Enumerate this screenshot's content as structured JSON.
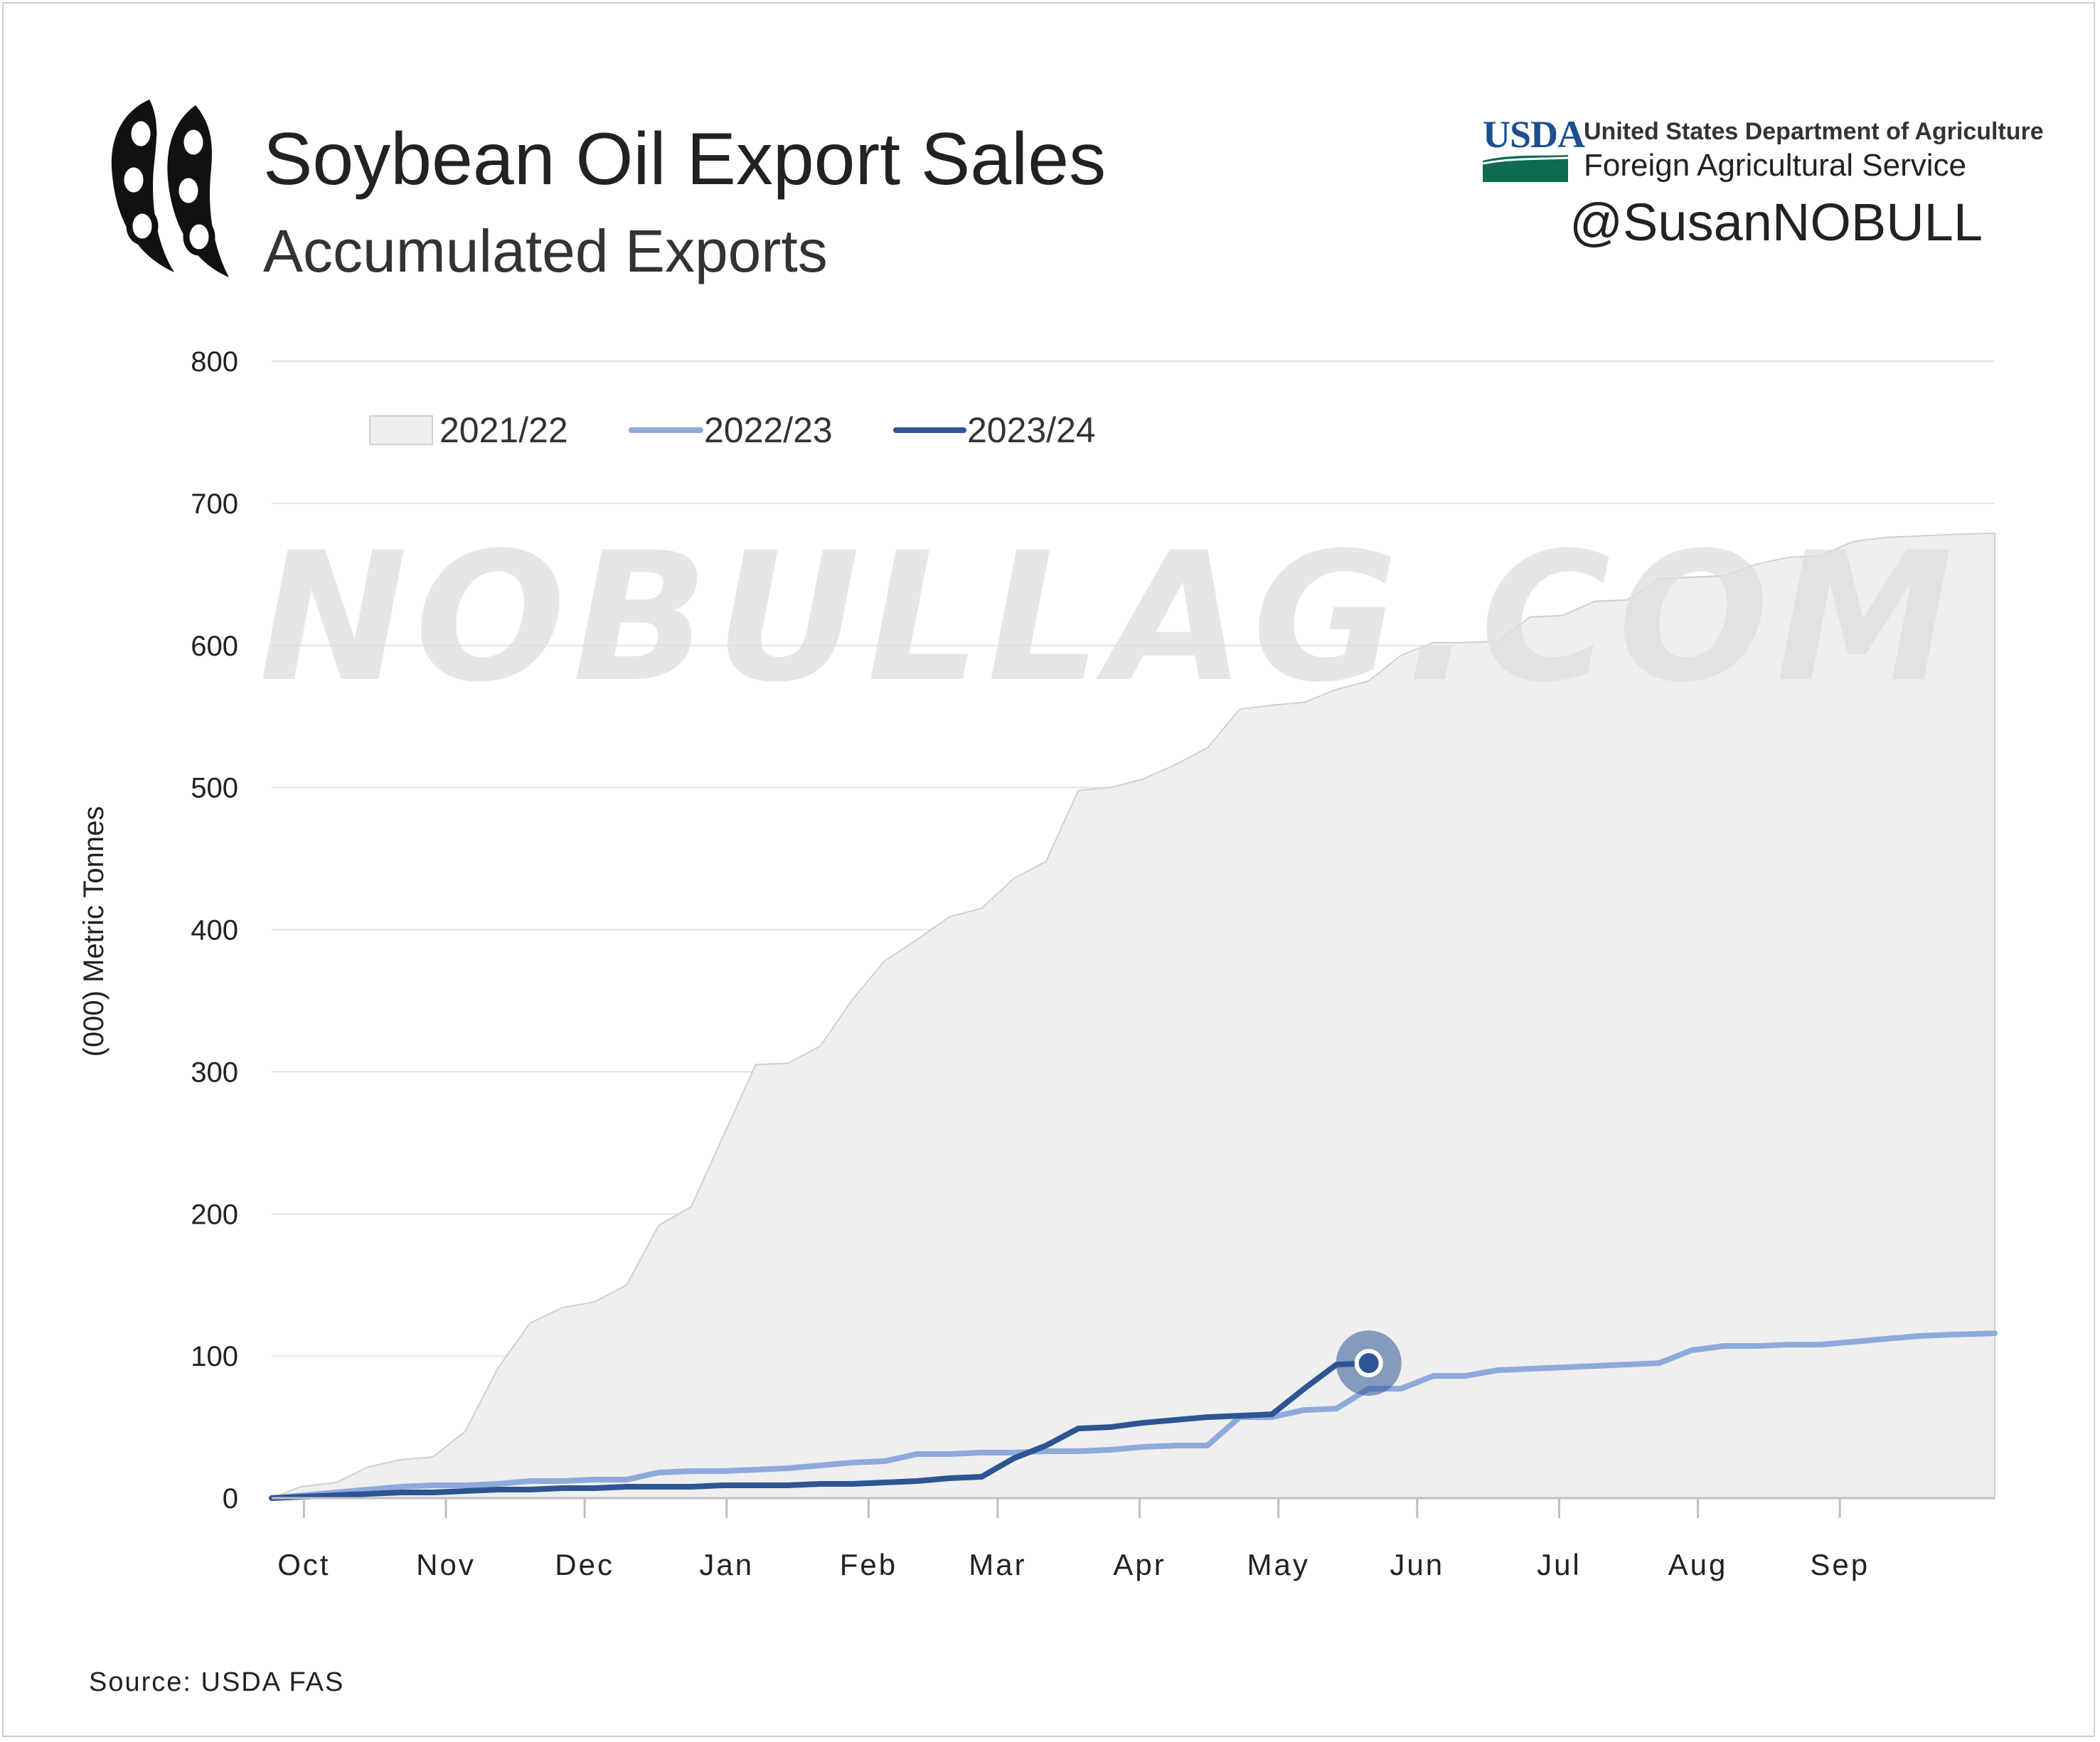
{
  "header": {
    "title": "Soybean Oil Export Sales",
    "subtitle": "Accumulated Exports",
    "logo_icon": "soybean-pod-icon"
  },
  "agency": {
    "abbr": "USDA",
    "department": "United States Department of Agriculture",
    "service": "Foreign Agricultural Service",
    "colors": {
      "blue": "#1b4f8f",
      "green": "#0f6b4f"
    }
  },
  "handle": "@SusanNOBULL",
  "watermark": "NOBULLAG.COM",
  "source": "Source: USDA FAS",
  "chart_data": {
    "type": "line",
    "title": "Soybean Oil Export Sales",
    "subtitle": "Accumulated Exports",
    "ylabel": "(000) Metric Tonnes",
    "xlabel": "",
    "ylim": [
      0,
      800
    ],
    "yticks": [
      0,
      100,
      200,
      300,
      400,
      500,
      600,
      700,
      800
    ],
    "months": [
      "Oct",
      "Nov",
      "Dec",
      "Jan",
      "Feb",
      "Mar",
      "Apr",
      "May",
      "Jun",
      "Jul",
      "Aug",
      "Sep"
    ],
    "x_unit": "weeks since start of marketing year (Oct 1)",
    "grid": true,
    "legend_position": "top-left",
    "series": [
      {
        "name": "2021/22",
        "render": "area",
        "color": "#efefef",
        "x": [
          0,
          0.9,
          2,
          3,
          4,
          5,
          6,
          7,
          8,
          9,
          10,
          11,
          12,
          13,
          14,
          15,
          16,
          17,
          18,
          19,
          20,
          21,
          22,
          23,
          24,
          25,
          26,
          27,
          28,
          29,
          30,
          31,
          32,
          33,
          34,
          35,
          36,
          37,
          38,
          39,
          40,
          41,
          42,
          43,
          44,
          45,
          46,
          47,
          48,
          49,
          50,
          51,
          52,
          53.4
        ],
        "y": [
          0,
          8,
          11,
          22,
          27,
          29,
          47,
          91,
          123,
          134,
          138,
          150,
          192,
          205,
          255,
          305,
          306,
          318,
          351,
          378,
          393,
          409,
          415,
          436,
          448,
          498,
          500,
          506,
          516,
          528,
          555,
          558,
          560,
          569,
          575,
          593,
          602,
          602,
          603,
          620,
          621,
          631,
          632,
          647,
          648,
          649,
          657,
          662,
          663,
          673,
          676,
          677,
          678,
          679
        ]
      },
      {
        "name": "2022/23",
        "render": "line",
        "color": "#8eaadc",
        "x": [
          0,
          1,
          2,
          3,
          4,
          5,
          6,
          7,
          8,
          9,
          10,
          11,
          12,
          13,
          14,
          15,
          16,
          17,
          18,
          19,
          20,
          21,
          22,
          23,
          24,
          25,
          26,
          27,
          28,
          29,
          30,
          31,
          32,
          33,
          34,
          35,
          36,
          37,
          38,
          39,
          40,
          41,
          42,
          43,
          44,
          45,
          46,
          47,
          48,
          49,
          50,
          51,
          52,
          53.4
        ],
        "y": [
          0,
          2,
          4,
          6,
          8,
          9,
          9,
          10,
          12,
          12,
          13,
          13,
          18,
          19,
          19,
          20,
          21,
          23,
          25,
          26,
          31,
          31,
          32,
          32,
          33,
          33,
          34,
          36,
          37,
          37,
          57,
          57,
          62,
          63,
          77,
          77,
          86,
          86,
          90,
          91,
          92,
          93,
          94,
          95,
          104,
          107,
          107,
          108,
          108,
          110,
          112,
          114,
          115,
          116
        ]
      },
      {
        "name": "2023/24",
        "render": "line",
        "color": "#2d5594",
        "x": [
          0,
          1,
          2,
          3,
          4,
          5,
          6,
          7,
          8,
          9,
          10,
          11,
          12,
          13,
          14,
          15,
          16,
          17,
          18,
          19,
          20,
          21,
          22,
          23,
          24,
          25,
          26,
          27,
          28,
          29,
          30,
          31,
          32,
          33,
          34
        ],
        "y": [
          0,
          1,
          2,
          3,
          4,
          4,
          5,
          6,
          6,
          7,
          7,
          8,
          8,
          8,
          9,
          9,
          9,
          10,
          10,
          11,
          12,
          14,
          15,
          28,
          37,
          49,
          50,
          53,
          55,
          57,
          58,
          59,
          77,
          94,
          95
        ],
        "last_point_marker": true
      }
    ]
  }
}
